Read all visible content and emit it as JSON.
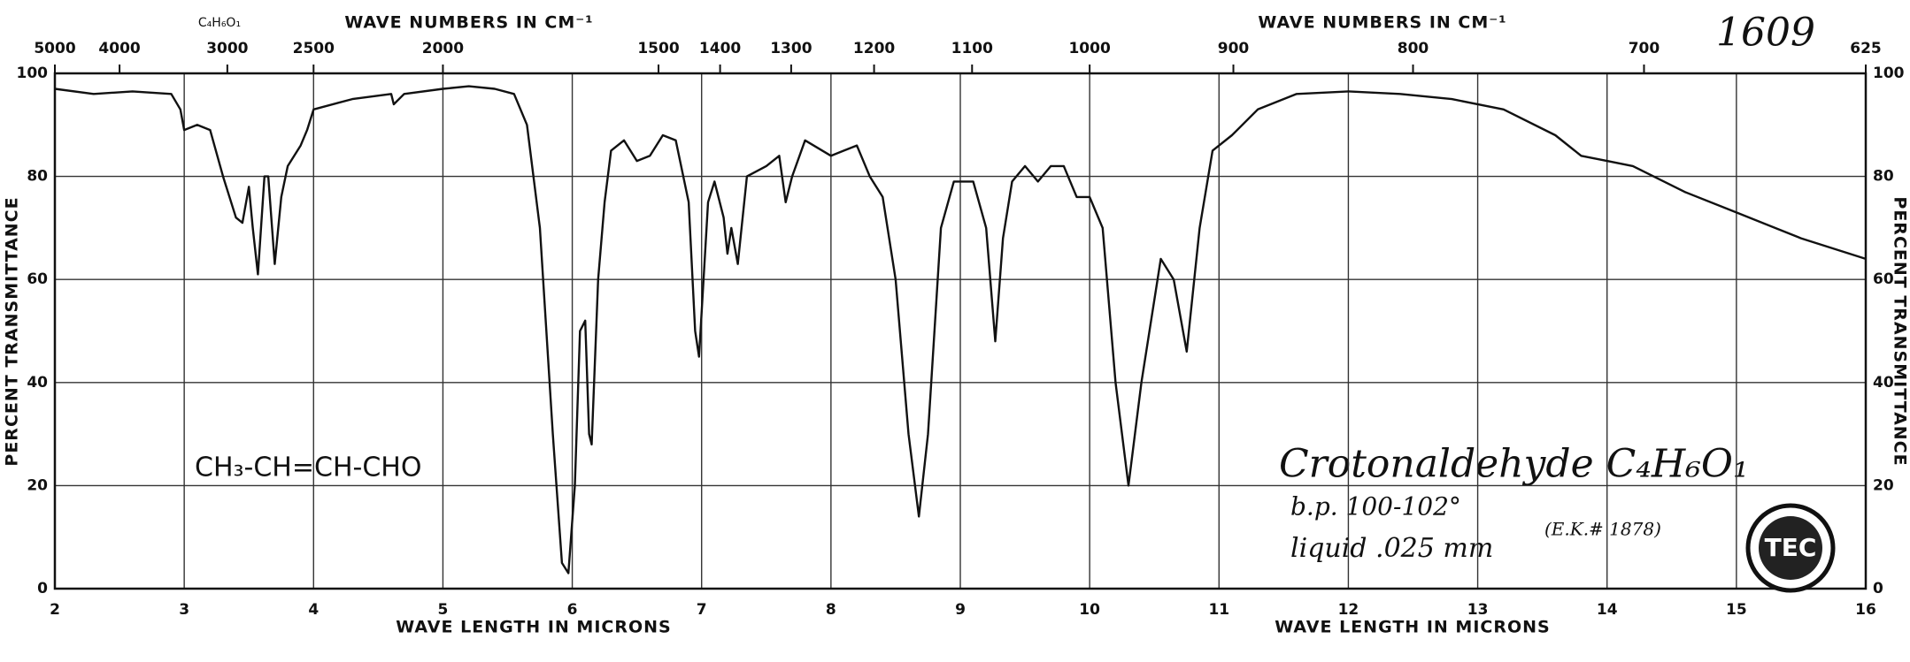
{
  "chart_data": {
    "type": "line",
    "title": "1609",
    "formula_top": "C₄H₆O₁",
    "x_label": "WAVE LENGTH IN MICRONS",
    "x2_label": "WAVE NUMBERS IN CM⁻¹",
    "y_label": "PERCENT TRANSMITTANCE",
    "annotations": {
      "structure": "CH₃-CH=CH-CHO",
      "name": "Crotonaldehyde C₄H₆O₁",
      "boiling_point": "b.p. 100-102°",
      "sample": "liquid .025 mm",
      "catalog": "(E.K.# 1878)",
      "logo": "TEC"
    },
    "xlim": [
      2,
      16
    ],
    "xticks": [
      2,
      3,
      4,
      5,
      6,
      7,
      8,
      9,
      10,
      11,
      12,
      13,
      14,
      15,
      16
    ],
    "x2ticks": [
      5000,
      4000,
      3000,
      2500,
      2000,
      1500,
      1400,
      1300,
      1200,
      1100,
      1000,
      900,
      800,
      700,
      625
    ],
    "ylim": [
      0,
      100
    ],
    "yticks": [
      0,
      20,
      40,
      60,
      80,
      100
    ],
    "grid": true,
    "color": "#111111",
    "x": [
      2.0,
      2.3,
      2.6,
      2.9,
      2.97,
      3.0,
      3.1,
      3.2,
      3.3,
      3.4,
      3.45,
      3.5,
      3.53,
      3.57,
      3.62,
      3.65,
      3.7,
      3.75,
      3.8,
      3.9,
      3.95,
      4.0,
      4.3,
      4.6,
      4.62,
      4.7,
      5.0,
      5.2,
      5.4,
      5.55,
      5.65,
      5.75,
      5.85,
      5.92,
      5.97,
      6.02,
      6.06,
      6.1,
      6.13,
      6.15,
      6.2,
      6.25,
      6.3,
      6.4,
      6.5,
      6.6,
      6.7,
      6.8,
      6.9,
      6.95,
      6.98,
      7.05,
      7.1,
      7.17,
      7.2,
      7.23,
      7.28,
      7.35,
      7.5,
      7.6,
      7.65,
      7.7,
      7.8,
      8.0,
      8.1,
      8.2,
      8.3,
      8.4,
      8.5,
      8.6,
      8.68,
      8.75,
      8.85,
      8.95,
      9.1,
      9.2,
      9.27,
      9.33,
      9.4,
      9.5,
      9.6,
      9.7,
      9.8,
      9.9,
      10.0,
      10.1,
      10.2,
      10.3,
      10.4,
      10.55,
      10.65,
      10.75,
      10.85,
      10.95,
      11.1,
      11.3,
      11.6,
      12.0,
      12.4,
      12.8,
      13.2,
      13.6,
      13.8,
      14.0,
      14.2,
      14.6,
      15.0,
      15.5,
      16.0
    ],
    "values": [
      97,
      96,
      96.5,
      96,
      93,
      89,
      90,
      89,
      80,
      72,
      71,
      78,
      70,
      61,
      80,
      80,
      63,
      76,
      82,
      86,
      89,
      93,
      95,
      96,
      94,
      96,
      97,
      97.5,
      97,
      96,
      90,
      70,
      30,
      5,
      3,
      20,
      50,
      52,
      30,
      28,
      60,
      75,
      85,
      87,
      83,
      84,
      88,
      87,
      75,
      50,
      45,
      75,
      79,
      72,
      65,
      70,
      63,
      80,
      82,
      84,
      75,
      80,
      87,
      84,
      85,
      86,
      80,
      76,
      60,
      30,
      14,
      30,
      70,
      79,
      79,
      70,
      48,
      68,
      79,
      82,
      79,
      82,
      82,
      76,
      76,
      70,
      40,
      20,
      40,
      64,
      60,
      46,
      70,
      85,
      88,
      93,
      96,
      96.5,
      96,
      95,
      93,
      88,
      84,
      83,
      82,
      77,
      73,
      68,
      64
    ]
  }
}
